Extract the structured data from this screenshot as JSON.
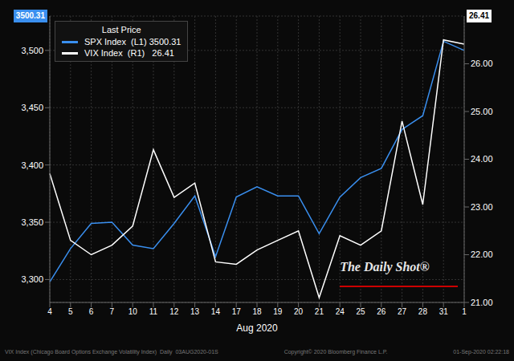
{
  "chart_data": {
    "type": "line",
    "x_label": "Aug 2020",
    "categories": [
      "4",
      "5",
      "6",
      "7",
      "10",
      "11",
      "12",
      "13",
      "14",
      "17",
      "18",
      "19",
      "20",
      "21",
      "24",
      "25",
      "26",
      "27",
      "28",
      "31",
      "1"
    ],
    "series": [
      {
        "name": "SPX Index  (L1) 3500.31",
        "color": "#3a8fef",
        "values": [
          3298,
          3327,
          3349,
          3350,
          3330,
          3327,
          3349,
          3373,
          3320,
          3372,
          3381,
          3373,
          3373,
          3340,
          3372,
          3389,
          3397,
          3431,
          3443,
          3508,
          3500
        ]
      },
      {
        "name": "VIX Index  (R1)   26.41",
        "color": "white",
        "axis": "y2",
        "values": [
          23.7,
          22.3,
          22.0,
          22.2,
          22.6,
          24.2,
          23.2,
          23.5,
          21.85,
          21.8,
          22.1,
          22.3,
          22.5,
          21.1,
          22.4,
          22.2,
          22.5,
          24.8,
          23.05,
          26.5,
          26.41
        ]
      }
    ],
    "ylim": [
      3280,
      3530
    ],
    "yticks": [
      {
        "value": 3300,
        "label": "3,300"
      },
      {
        "value": 3350,
        "label": "3,350"
      },
      {
        "value": 3400,
        "label": "3,400"
      },
      {
        "value": 3450,
        "label": "3,450"
      },
      {
        "value": 3500,
        "label": "3,500"
      }
    ],
    "y2lim": [
      21.0,
      27.0
    ],
    "y2ticks": [
      {
        "value": 21,
        "label": "21.00"
      },
      {
        "value": 22,
        "label": "22.00"
      },
      {
        "value": 23,
        "label": "23.00"
      },
      {
        "value": 24,
        "label": "24.00"
      },
      {
        "value": 25,
        "label": "25.00"
      },
      {
        "value": 26,
        "label": "26.00"
      }
    ],
    "grid": true,
    "legend": "upper left",
    "annotations": [
      "Last Price",
      "3500.31",
      "26.41",
      "The Daily Shot®",
      "VIX Index (Chicago Board Options Exchange Volatility Index)  Daily  03AUG2020-01S",
      "Copyright© 2020 Bloomberg Finance L.P.",
      "01-Sep-2020 02:22:18"
    ]
  }
}
